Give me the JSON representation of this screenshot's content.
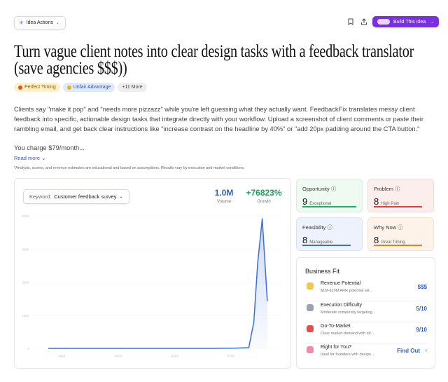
{
  "header": {
    "actions_button": "Idea Actions",
    "build_button": "Build This Idea"
  },
  "title": "Turn vague client notes into clear design tasks with a feedback translator (save agencies $$$))",
  "tags": [
    "Perfect Timing",
    "Unfair Advantage",
    "+11 More"
  ],
  "description": "Clients say \"make it pop\" and \"needs more pizzazz\" while you're left guessing what they actually want. FeedbackFix translates messy client feedback into specific, actionable design tasks that integrate directly with your workflow. Upload a screenshot of client comments or paste their rambling email, and get back clear instructions like \"increase contrast on the headline by 40%\" or \"add 20px padding around the CTA button.\"",
  "pricing": "You charge $79/month...",
  "read_more": "Read more",
  "disclaimer": "*Analysis, scores, and revenue estimates are educational and based on assumptions. Results vary by execution and market conditions.",
  "trend": {
    "keyword_label": "Keyword:",
    "keyword": "Customer feedback survey",
    "volume": "1.0M",
    "volume_label": "Volume",
    "growth": "+76823%",
    "growth_label": "Growth"
  },
  "chart_data": {
    "type": "line",
    "color": "#3b6fd8",
    "x": [
      2021.76,
      2022.2,
      2022.7,
      2023.2,
      2023.7,
      2024.2,
      2024.7,
      2025.1,
      2025.32,
      2025.41,
      2025.48,
      2025.56,
      2025.65
    ],
    "values": [
      0,
      0,
      0,
      0,
      0,
      0,
      0,
      1000,
      3000,
      118000,
      390000,
      587000,
      214000
    ],
    "xlim": [
      2021.5,
      2025.9
    ],
    "xticks": [
      2022,
      2023,
      2024,
      2025
    ],
    "ylim": [
      0,
      600000
    ],
    "yticks": [
      0,
      {
        "value": 150000,
        "label": "150K"
      },
      {
        "value": 300000,
        "label": "300K"
      },
      {
        "value": 450000,
        "label": "450K"
      },
      {
        "value": 600000,
        "label": "600K"
      }
    ]
  },
  "scores": [
    {
      "label": "Opportunity",
      "score": 9,
      "sub": "Exceptional"
    },
    {
      "label": "Problem",
      "score": 8,
      "sub": "High Pain"
    },
    {
      "label": "Feasibility",
      "score": 8,
      "sub": "Manageable"
    },
    {
      "label": "Why Now",
      "score": 8,
      "sub": "Great Timing"
    }
  ],
  "business_fit": {
    "title": "Business Fit",
    "rows": [
      {
        "name": "Revenue Potential",
        "desc": "$1M-$10M ARR potential wit...",
        "value": "$$$"
      },
      {
        "name": "Execution Difficulty",
        "desc": "Moderate complexity targeting...",
        "value": "5/10"
      },
      {
        "name": "Go-To-Market",
        "desc": "Clear market demand with str...",
        "value": "9/10"
      },
      {
        "name": "Right for You?",
        "desc": "Ideal for founders with design ...",
        "value": "Find Out"
      }
    ]
  }
}
